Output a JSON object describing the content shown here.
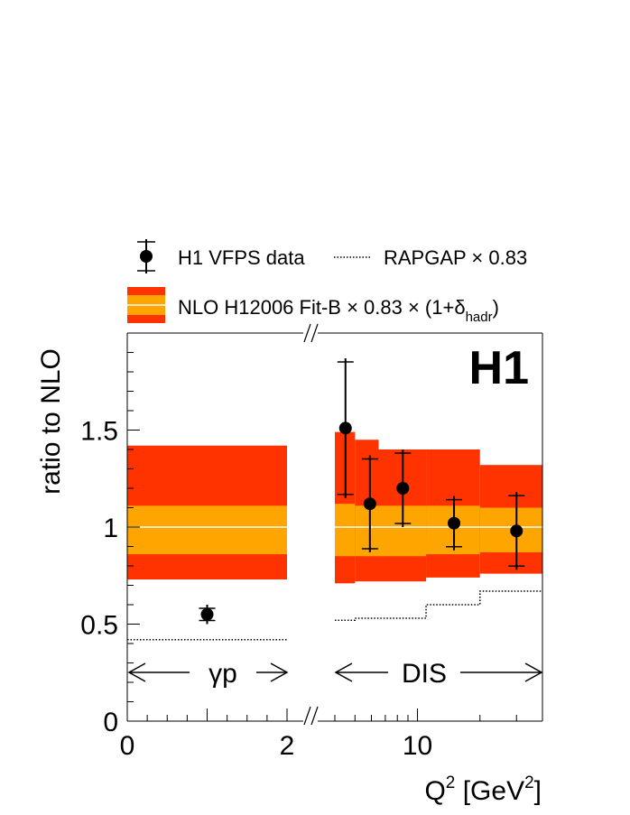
{
  "chart_data": {
    "type": "scatter",
    "ylabel": "ratio to NLO",
    "xlabel": {
      "main": "Q",
      "sup": "2",
      "unit_open": " [GeV",
      "unit_sup": "2",
      "unit_close": "]"
    },
    "logo": "H1",
    "ylim": [
      0,
      2
    ],
    "y_ticks": [
      {
        "value": 0,
        "label": "0"
      },
      {
        "value": 0.5,
        "label": "0.5"
      },
      {
        "value": 1,
        "label": "1"
      },
      {
        "value": 1.5,
        "label": "1.5"
      }
    ],
    "broken_x_axis": true,
    "x_tick_labels": [
      {
        "label": "0",
        "panel": "photoproduction",
        "value": 0
      },
      {
        "label": "2",
        "panel": "photoproduction",
        "value": 2
      },
      {
        "label": "10",
        "panel": "dis",
        "value": 10
      }
    ],
    "regions": [
      {
        "id": "photoproduction",
        "label": "γp"
      },
      {
        "id": "dis",
        "label": "DIS"
      }
    ],
    "legend": [
      {
        "marker": "dot-errorbar",
        "label": "H1 VFPS data"
      },
      {
        "marker": "dotted-line",
        "label": "RAPGAP × 0.83"
      },
      {
        "marker": "band",
        "label_main": "NLO H12006 Fit-B × 0.83 × (1+δ",
        "label_sub": "hadr",
        "label_close": ")"
      }
    ],
    "data_points": [
      {
        "region": "photoproduction",
        "x": 1.0,
        "y": 0.55,
        "err": 0.05
      },
      {
        "region": "dis",
        "x": 4.5,
        "y": 1.51,
        "err": 0.36
      },
      {
        "region": "dis",
        "x": 5.9,
        "y": 1.12,
        "err": 0.25
      },
      {
        "region": "dis",
        "x": 8.5,
        "y": 1.2,
        "err": 0.2
      },
      {
        "region": "dis",
        "x": 15.0,
        "y": 1.02,
        "err": 0.14
      },
      {
        "region": "dis",
        "x": 30.0,
        "y": 0.98,
        "err": 0.2
      }
    ],
    "nlo_bands": [
      {
        "region": "photoproduction",
        "x_from": 0,
        "x_to": 2,
        "inner": [
          0.86,
          1.11
        ],
        "outer": [
          0.73,
          1.42
        ]
      },
      {
        "region": "dis",
        "x_from": 4,
        "x_to": 5,
        "inner": [
          0.85,
          1.12
        ],
        "outer": [
          0.71,
          1.49
        ]
      },
      {
        "region": "dis",
        "x_from": 5,
        "x_to": 6.5,
        "inner": [
          0.85,
          1.11
        ],
        "outer": [
          0.72,
          1.45
        ]
      },
      {
        "region": "dis",
        "x_from": 6.5,
        "x_to": 11,
        "inner": [
          0.85,
          1.11
        ],
        "outer": [
          0.72,
          1.4
        ]
      },
      {
        "region": "dis",
        "x_from": 11,
        "x_to": 20,
        "inner": [
          0.86,
          1.11
        ],
        "outer": [
          0.74,
          1.4
        ]
      },
      {
        "region": "dis",
        "x_from": 20,
        "x_to": 40,
        "inner": [
          0.87,
          1.1
        ],
        "outer": [
          0.76,
          1.32
        ]
      }
    ],
    "rapgap": [
      {
        "region": "photoproduction",
        "x_from": 0,
        "x_to": 2,
        "y": 0.42
      },
      {
        "region": "dis",
        "x_from": 4,
        "x_to": 5,
        "y": 0.52
      },
      {
        "region": "dis",
        "x_from": 5,
        "x_to": 11,
        "y": 0.53
      },
      {
        "region": "dis",
        "x_from": 11,
        "x_to": 20,
        "y": 0.6
      },
      {
        "region": "dis",
        "x_from": 20,
        "x_to": 40,
        "y": 0.67
      }
    ],
    "colors": {
      "outer_band": "#ff3300",
      "inner_band": "#ffa500",
      "central_line": "#ffffff",
      "data": "#000000",
      "rapgap": "#000000"
    }
  }
}
